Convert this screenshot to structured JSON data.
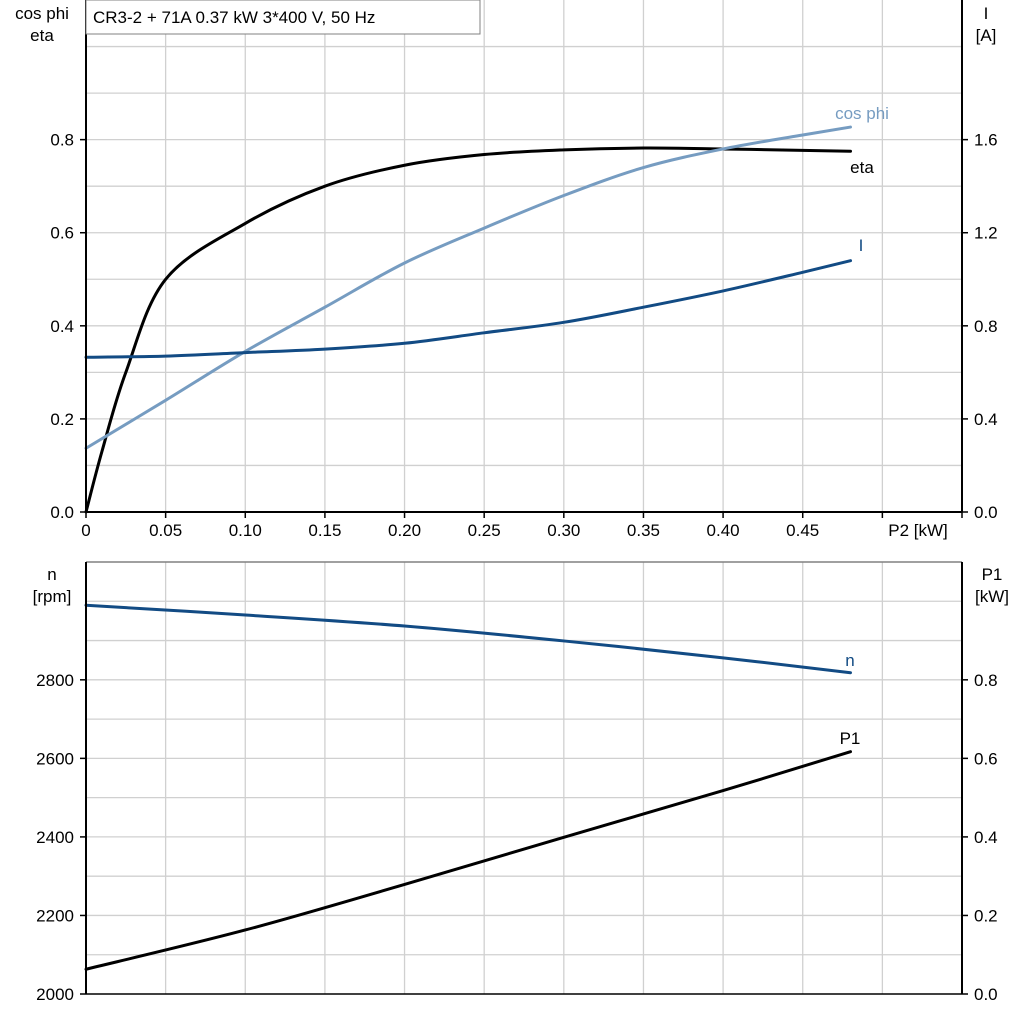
{
  "title": "CR3-2 + 71A   0.37 kW   3*400 V, 50 Hz",
  "colors": {
    "dark_blue": "#124b84",
    "light_blue": "#769cc1",
    "black": "#000000",
    "grid": "#d0d0d0"
  },
  "chart_data": [
    {
      "type": "line",
      "xlabel": "P2 [kW]",
      "xlim": [
        0,
        0.55
      ],
      "xticks": [
        "0",
        "0.05",
        "0.10",
        "0.15",
        "0.20",
        "0.25",
        "0.30",
        "0.35",
        "0.40",
        "0.45"
      ],
      "ylabel_left": [
        "cos phi",
        "eta"
      ],
      "ylim_left": [
        0,
        1.1
      ],
      "yticks_left": [
        "0.0",
        "0.2",
        "0.4",
        "0.6",
        "0.8"
      ],
      "ylabel_right": [
        "I",
        "[A]"
      ],
      "ylim_right": [
        0,
        2.2
      ],
      "yticks_right": [
        "0.0",
        "0.4",
        "0.8",
        "1.2",
        "1.6"
      ],
      "grid": true,
      "series": [
        {
          "name": "eta",
          "axis": "left",
          "color": "#000000",
          "x": [
            0,
            0.01,
            0.025,
            0.05,
            0.1,
            0.15,
            0.2,
            0.25,
            0.3,
            0.35,
            0.4,
            0.45,
            0.48
          ],
          "y": [
            0,
            0.13,
            0.3,
            0.5,
            0.62,
            0.7,
            0.745,
            0.768,
            0.778,
            0.782,
            0.78,
            0.777,
            0.775
          ]
        },
        {
          "name": "cos phi",
          "axis": "left",
          "color": "#769cc1",
          "x": [
            0,
            0.05,
            0.1,
            0.15,
            0.2,
            0.25,
            0.3,
            0.35,
            0.4,
            0.45,
            0.48
          ],
          "y": [
            0.137,
            0.24,
            0.345,
            0.44,
            0.535,
            0.61,
            0.68,
            0.74,
            0.78,
            0.81,
            0.827
          ]
        },
        {
          "name": "I",
          "axis": "right",
          "color": "#124b84",
          "x": [
            0,
            0.05,
            0.1,
            0.15,
            0.2,
            0.25,
            0.3,
            0.35,
            0.4,
            0.45,
            0.48
          ],
          "y": [
            0.665,
            0.67,
            0.685,
            0.7,
            0.725,
            0.77,
            0.815,
            0.88,
            0.95,
            1.03,
            1.08
          ]
        }
      ]
    },
    {
      "type": "line",
      "xlim": [
        0,
        0.55
      ],
      "ylabel_left": [
        "n",
        "[rpm]"
      ],
      "ylim_left": [
        2000,
        3100
      ],
      "yticks_left": [
        "2000",
        "2200",
        "2400",
        "2600",
        "2800"
      ],
      "ylabel_right": [
        "P1",
        "[kW]"
      ],
      "ylim_right": [
        0,
        1.1
      ],
      "yticks_right": [
        "0.0",
        "0.2",
        "0.4",
        "0.6",
        "0.8"
      ],
      "grid": true,
      "series": [
        {
          "name": "n",
          "axis": "left",
          "color": "#124b84",
          "x": [
            0,
            0.1,
            0.2,
            0.3,
            0.4,
            0.48
          ],
          "y": [
            2990,
            2965,
            2937,
            2899,
            2856,
            2818
          ]
        },
        {
          "name": "P1",
          "axis": "right",
          "color": "#000000",
          "x": [
            0,
            0.1,
            0.2,
            0.3,
            0.4,
            0.48
          ],
          "y": [
            0.063,
            0.163,
            0.279,
            0.399,
            0.518,
            0.617
          ]
        }
      ]
    }
  ]
}
